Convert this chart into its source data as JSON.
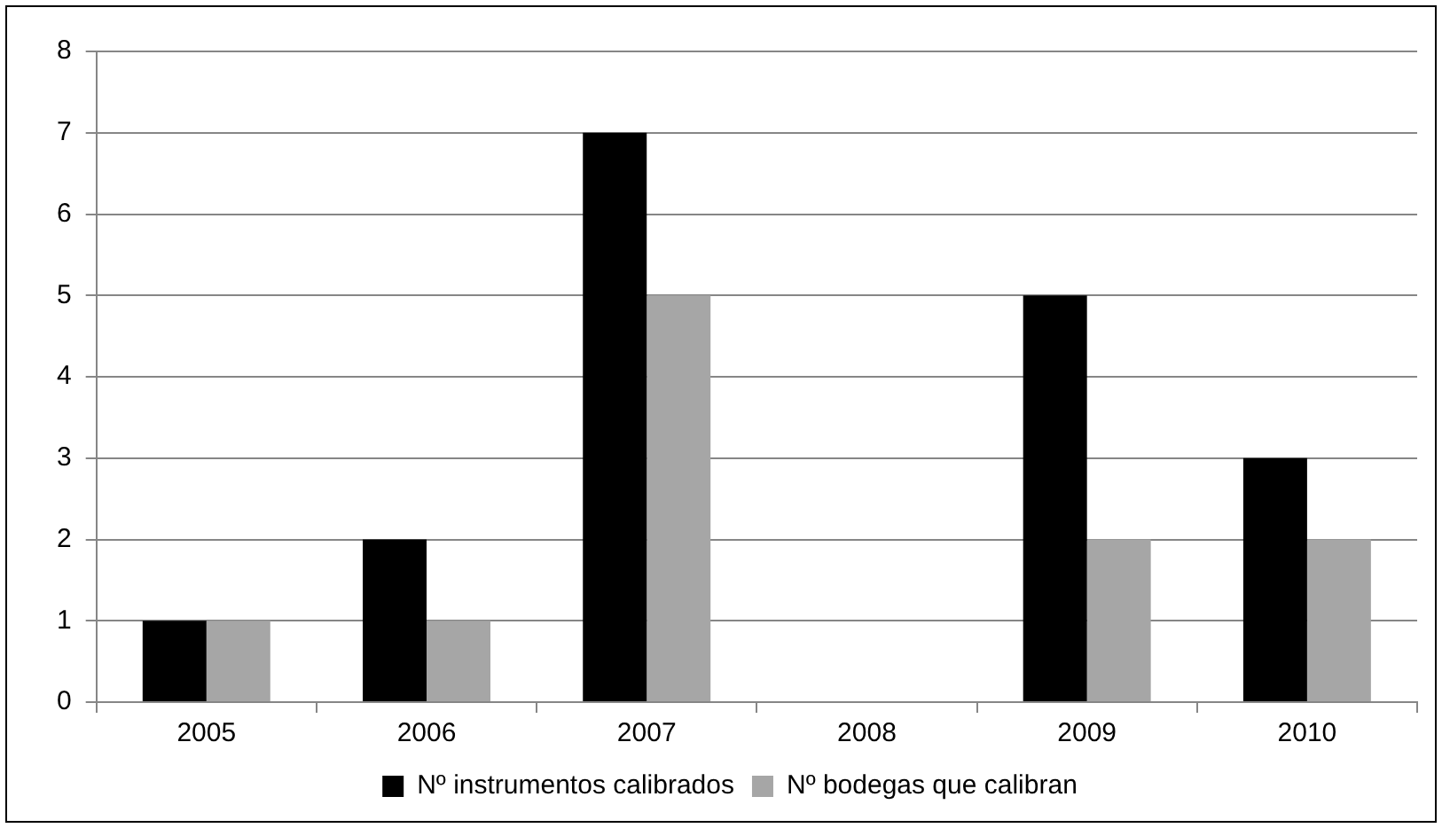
{
  "chart_data": {
    "type": "bar",
    "categories": [
      "2005",
      "2006",
      "2007",
      "2008",
      "2009",
      "2010"
    ],
    "series": [
      {
        "name": "Nº instrumentos calibrados",
        "color": "#000000",
        "values": [
          1,
          2,
          7,
          0,
          5,
          3
        ]
      },
      {
        "name": "Nº bodegas que calibran",
        "color": "#a6a6a6",
        "values": [
          1,
          1,
          5,
          0,
          2,
          2
        ]
      }
    ],
    "ylim": [
      0,
      8
    ],
    "yticks": [
      0,
      1,
      2,
      3,
      4,
      5,
      6,
      7,
      8
    ],
    "grid": "y",
    "legend": "bottom"
  }
}
